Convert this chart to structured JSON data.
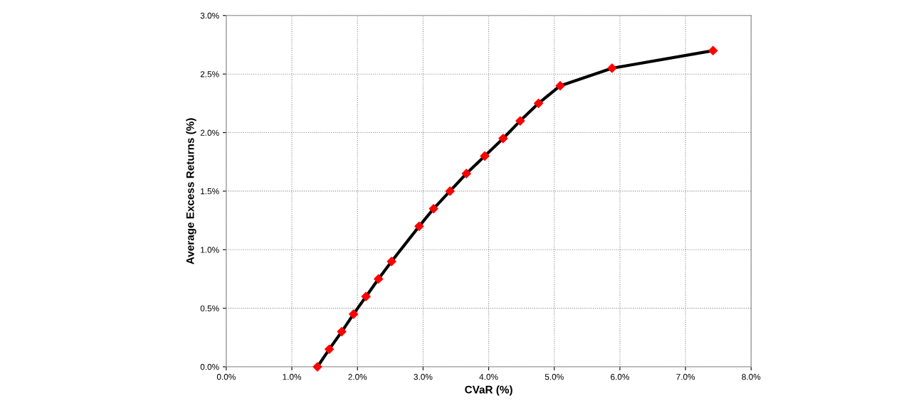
{
  "chart_data": {
    "type": "line",
    "xlabel": "CVaR (%)",
    "ylabel": "Average Excess Returns (%)",
    "series": [
      {
        "color": "#000000",
        "colors": [
          "#ff0000",
          "#ff0000",
          "#ff0000",
          "#ff0000",
          "#ff0000",
          "#ff0000",
          "#ff0000",
          "#ff0000",
          "#ff0000",
          "#ff0000",
          "#ff0000",
          "#ff0000",
          "#ff0000",
          "#ff0000",
          "#ff0000",
          "#ff0000",
          "#ff0000",
          "#ff0000"
        ],
        "x": [
          1.39,
          1.57,
          1.76,
          1.94,
          2.13,
          2.32,
          2.52,
          2.94,
          3.16,
          3.41,
          3.66,
          3.94,
          4.22,
          4.48,
          4.76,
          5.09,
          5.88,
          7.42
        ],
        "values": [
          0.0,
          0.15,
          0.3,
          0.45,
          0.6,
          0.75,
          0.9,
          1.2,
          1.35,
          1.5,
          1.65,
          1.8,
          1.95,
          2.1,
          2.25,
          2.4,
          2.55,
          2.7
        ]
      }
    ],
    "marker": "diamond",
    "line_style": "solid",
    "grid": true,
    "xlim": [
      0,
      8
    ],
    "ylim": [
      0,
      3
    ],
    "xticks": [
      {
        "value": 0,
        "label": "0.0%"
      },
      {
        "value": 1,
        "label": "1.0%"
      },
      {
        "value": 2,
        "label": "2.0%"
      },
      {
        "value": 3,
        "label": "3.0%"
      },
      {
        "value": 4,
        "label": "4.0%"
      },
      {
        "value": 5,
        "label": "5.0%"
      },
      {
        "value": 6,
        "label": "6.0%"
      },
      {
        "value": 7,
        "label": "7.0%"
      },
      {
        "value": 8,
        "label": "8.0%"
      }
    ],
    "yticks": [
      {
        "value": 0,
        "label": "0.0%"
      },
      {
        "value": 0.5,
        "label": "0.5%"
      },
      {
        "value": 1,
        "label": "1.0%"
      },
      {
        "value": 1.5,
        "label": "1.5%"
      },
      {
        "value": 2,
        "label": "2.0%"
      },
      {
        "value": 2.5,
        "label": "2.5%"
      },
      {
        "value": 3,
        "label": "3.0%"
      }
    ]
  }
}
